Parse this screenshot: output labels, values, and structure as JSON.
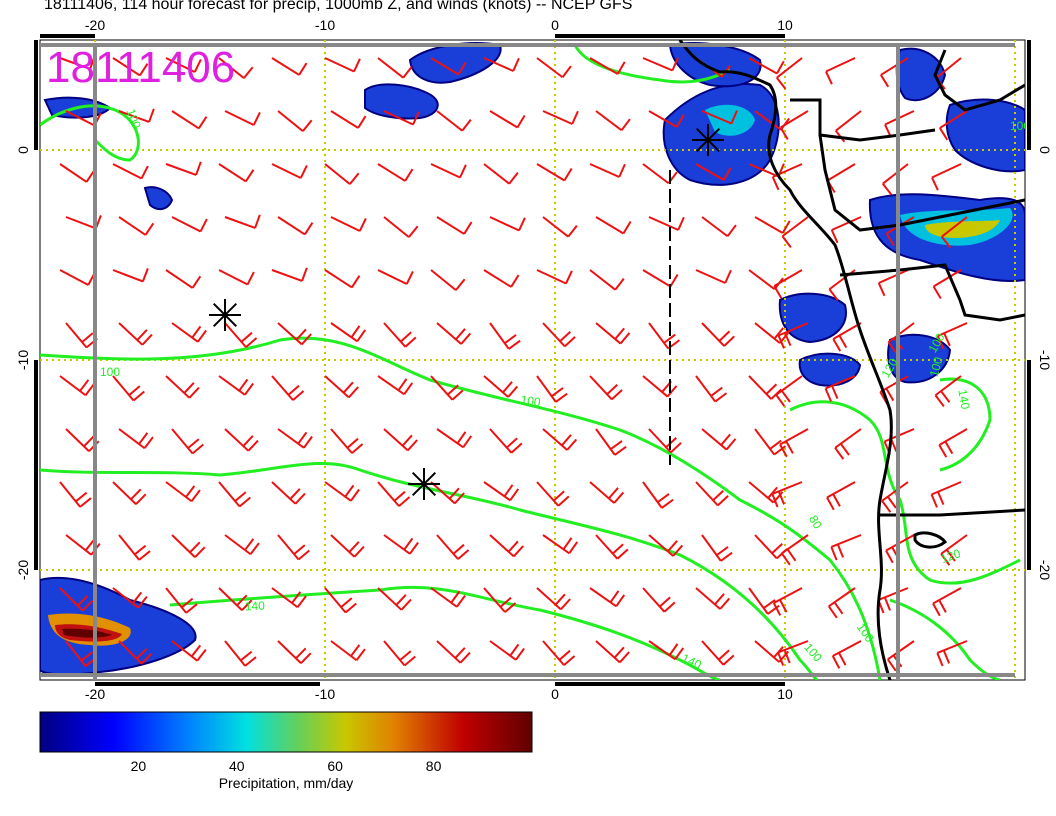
{
  "title": "18111406, 114 hour forecast for precip, 1000mb Z, and winds (knots) -- NCEP GFS",
  "date_stamp": "18111406",
  "colors": {
    "stamp": "#e020e0",
    "contour": "#22ee22",
    "barb": "#ee1111",
    "grid": "#c8c800",
    "land": "#000000",
    "frame": "#888888"
  },
  "axes": {
    "lon_ticks": [
      "-20",
      "-10",
      "0",
      "10"
    ],
    "lat_ticks": [
      "0",
      "-10",
      "-20"
    ]
  },
  "contour_labels": [
    "100",
    "100",
    "140",
    "140",
    "80",
    "100",
    "100",
    "100",
    "120",
    "140",
    "100",
    "120",
    "100",
    "100"
  ],
  "colorbar": {
    "label": "Precipitation, mm/day",
    "ticks": [
      "20",
      "40",
      "60",
      "80"
    ],
    "min": 0,
    "max": 100,
    "stops": [
      "#000080",
      "#0000ff",
      "#0080ff",
      "#00e0e0",
      "#60d060",
      "#c8c800",
      "#e08000",
      "#c00000",
      "#600000"
    ]
  },
  "features": [
    "precip-areas",
    "geopotential-contours",
    "wind-barbs",
    "coastlines",
    "low-pressure-centers"
  ]
}
